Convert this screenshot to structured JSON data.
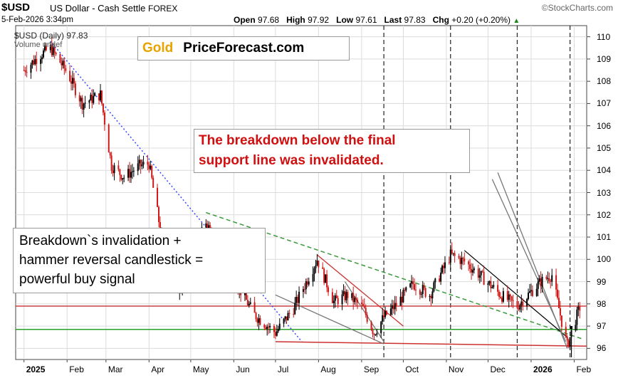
{
  "header": {
    "symbol": "$USD",
    "description": "US Dollar - Cash Settle",
    "exchange": "FOREX",
    "brand": "©StockCharts.com",
    "date": "5-Feb-2026 3:34pm",
    "open_label": "Open",
    "open": "97.68",
    "high_label": "High",
    "high": "97.92",
    "low_label": "Low",
    "low": "97.61",
    "last_label": "Last",
    "last": "97.83",
    "chg_label": "Chg",
    "chg": "+0.20 (+0.20%)",
    "chg_icon": "up-triangle-icon"
  },
  "legend": {
    "series": "$USD (Daily) 97.83",
    "volume": "Volume undef"
  },
  "logo": {
    "gold": "Gold",
    "rest": "PriceForecast.com"
  },
  "annotations": {
    "top_line1": "The breakdown below the final",
    "top_line2": "support line was invalidated.",
    "left_line1": "Breakdown`s invalidation +",
    "left_line2": "hammer reversal candlestick =",
    "left_line3": "powerful buy signal"
  },
  "chart_data": {
    "type": "line",
    "title": "$USD US Dollar - Cash Settle",
    "ylim": [
      95.5,
      110.5
    ],
    "y_ticks": [
      "110",
      "109",
      "108",
      "107",
      "106",
      "105",
      "104",
      "103",
      "102",
      "101",
      "100",
      "99",
      "98",
      "97",
      "96"
    ],
    "x_labels": [
      "2025",
      "Feb",
      "Mar",
      "Apr",
      "May",
      "Jun",
      "Jul",
      "Aug",
      "Sep",
      "Oct",
      "Nov",
      "Dec",
      "2026",
      "Feb"
    ],
    "x": [
      "2025-01-01",
      "2025-01-13",
      "2025-01-20",
      "2025-02-01",
      "2025-02-12",
      "2025-02-25",
      "2025-03-05",
      "2025-03-14",
      "2025-03-25",
      "2025-04-01",
      "2025-04-10",
      "2025-04-21",
      "2025-05-01",
      "2025-05-12",
      "2025-05-20",
      "2025-06-02",
      "2025-06-16",
      "2025-07-01",
      "2025-07-14",
      "2025-07-31",
      "2025-08-12",
      "2025-08-22",
      "2025-09-02",
      "2025-09-10",
      "2025-09-17",
      "2025-09-25",
      "2025-10-08",
      "2025-10-20",
      "2025-11-04",
      "2025-11-14",
      "2025-11-25",
      "2025-12-10",
      "2025-12-22",
      "2026-01-08",
      "2026-01-16",
      "2026-01-23",
      "2026-01-27",
      "2026-02-02",
      "2026-02-05"
    ],
    "series": [
      {
        "values": [
          108.5,
          109.2,
          109.5,
          108.4,
          107.0,
          107.4,
          104.2,
          103.7,
          104.2,
          104.3,
          101.0,
          98.5,
          99.8,
          101.7,
          100.5,
          99.0,
          97.5,
          96.7,
          97.8,
          100.0,
          98.1,
          98.4,
          97.8,
          96.7,
          97.4,
          97.9,
          98.9,
          98.4,
          100.2,
          99.9,
          99.3,
          98.4,
          97.9,
          99.0,
          99.3,
          97.2,
          96.1,
          97.3,
          97.83
        ]
      }
    ],
    "overlays": {
      "horizontal_lines": [
        {
          "y": 97.9,
          "color": "#d04040"
        },
        {
          "y": 96.85,
          "color": "#2aa02a"
        }
      ],
      "vertical_dashed_dates": [
        "2025-09-17",
        "2025-11-04",
        "2025-12-22",
        "2026-01-29"
      ],
      "colors": {
        "up": "#000000",
        "down": "#cc1a1a",
        "blue_trend": "#3a4bff",
        "green_trend": "#3a9a3a"
      }
    }
  }
}
